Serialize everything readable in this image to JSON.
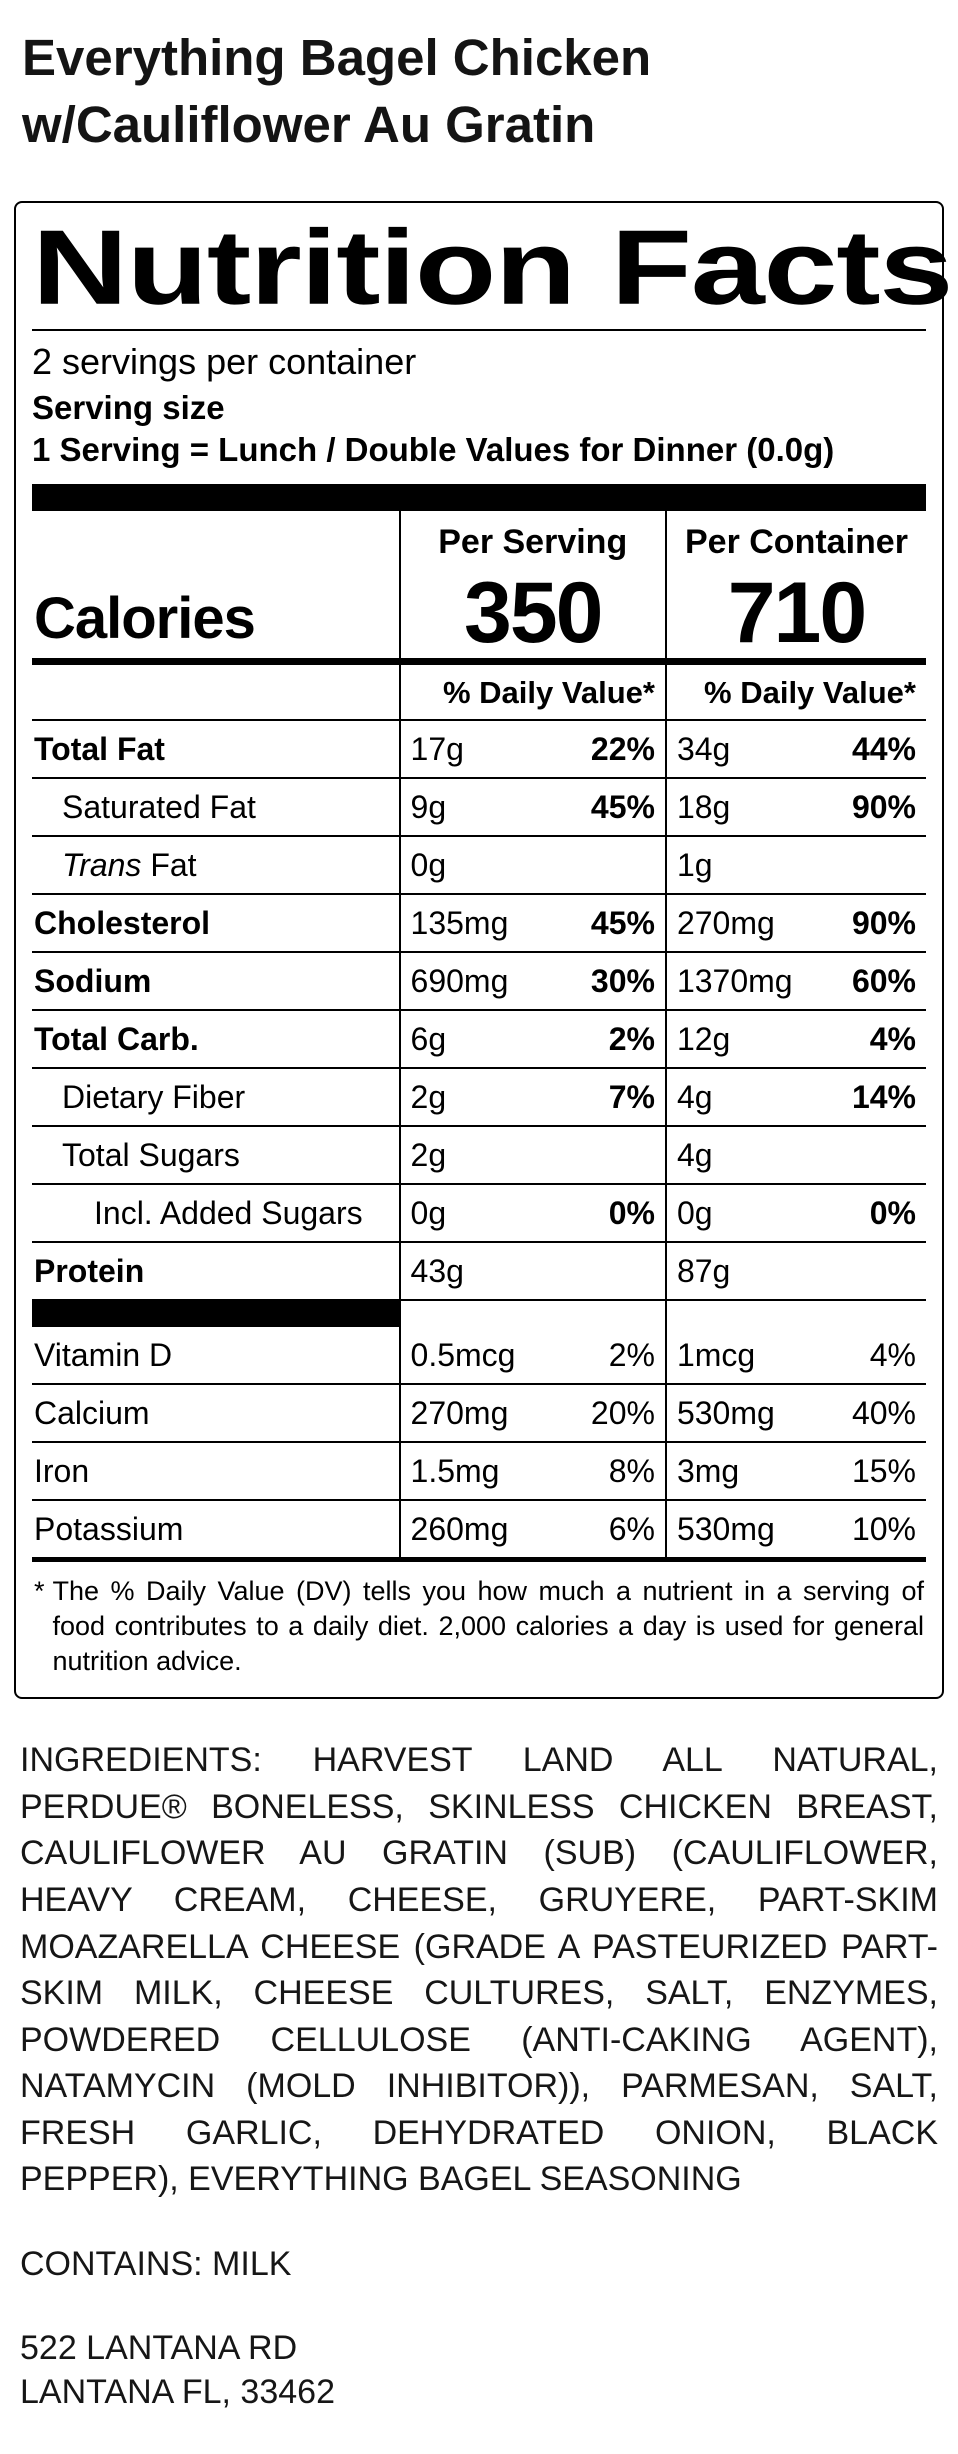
{
  "page": {
    "title_line1": "Everything Bagel Chicken",
    "title_line2": "w/Cauliflower Au Gratin"
  },
  "label": {
    "heading": "Nutrition Facts",
    "servings_per_container": "2 servings per container",
    "serving_size_label": "Serving size",
    "serving_size_value": "1 Serving = Lunch / Double Values for Dinner (0.0g)",
    "columns": {
      "per_serving": "Per Serving",
      "per_container": "Per Container"
    },
    "calories_label": "Calories",
    "calories_per_serving": "350",
    "calories_per_container": "710",
    "daily_value_header": "% Daily Value*",
    "rows": [
      {
        "key": "total-fat",
        "name": "Total Fat",
        "bold": true,
        "indent": 0,
        "per_serving": {
          "amount": "17g",
          "dv": "22%"
        },
        "per_container": {
          "amount": "34g",
          "dv": "44%"
        }
      },
      {
        "key": "saturated-fat",
        "name": "Saturated Fat",
        "bold": false,
        "indent": 1,
        "per_serving": {
          "amount": "9g",
          "dv": "45%"
        },
        "per_container": {
          "amount": "18g",
          "dv": "90%"
        }
      },
      {
        "key": "trans-fat",
        "name_parts": [
          {
            "text": "Trans",
            "italic": true
          },
          {
            "text": " Fat",
            "italic": false
          }
        ],
        "bold": false,
        "indent": 1,
        "per_serving": {
          "amount": "0g",
          "dv": ""
        },
        "per_container": {
          "amount": "1g",
          "dv": ""
        }
      },
      {
        "key": "cholesterol",
        "name": "Cholesterol",
        "bold": true,
        "indent": 0,
        "per_serving": {
          "amount": "135mg",
          "dv": "45%"
        },
        "per_container": {
          "amount": "270mg",
          "dv": "90%"
        }
      },
      {
        "key": "sodium",
        "name": "Sodium",
        "bold": true,
        "indent": 0,
        "per_serving": {
          "amount": "690mg",
          "dv": "30%"
        },
        "per_container": {
          "amount": "1370mg",
          "dv": "60%"
        }
      },
      {
        "key": "total-carb",
        "name": "Total Carb.",
        "bold": true,
        "indent": 0,
        "per_serving": {
          "amount": "6g",
          "dv": "2%"
        },
        "per_container": {
          "amount": "12g",
          "dv": "4%"
        }
      },
      {
        "key": "dietary-fiber",
        "name": "Dietary Fiber",
        "bold": false,
        "indent": 1,
        "per_serving": {
          "amount": "2g",
          "dv": "7%"
        },
        "per_container": {
          "amount": "4g",
          "dv": "14%"
        }
      },
      {
        "key": "total-sugars",
        "name": "Total Sugars",
        "bold": false,
        "indent": 1,
        "per_serving": {
          "amount": "2g",
          "dv": ""
        },
        "per_container": {
          "amount": "4g",
          "dv": ""
        }
      },
      {
        "key": "added-sugars",
        "name": "Incl. Added Sugars",
        "bold": false,
        "indent": 2,
        "per_serving": {
          "amount": "0g",
          "dv": "0%"
        },
        "per_container": {
          "amount": "0g",
          "dv": "0%"
        }
      },
      {
        "key": "protein",
        "name": "Protein",
        "bold": true,
        "indent": 0,
        "per_serving": {
          "amount": "43g",
          "dv": ""
        },
        "per_container": {
          "amount": "87g",
          "dv": ""
        }
      }
    ],
    "vitamins": [
      {
        "key": "vitamin-d",
        "name": "Vitamin D",
        "bold": false,
        "indent": 0,
        "per_serving": {
          "amount": "0.5mcg",
          "dv": "2%"
        },
        "per_container": {
          "amount": "1mcg",
          "dv": "4%"
        }
      },
      {
        "key": "calcium",
        "name": "Calcium",
        "bold": false,
        "indent": 0,
        "per_serving": {
          "amount": "270mg",
          "dv": "20%"
        },
        "per_container": {
          "amount": "530mg",
          "dv": "40%"
        }
      },
      {
        "key": "iron",
        "name": "Iron",
        "bold": false,
        "indent": 0,
        "per_serving": {
          "amount": "1.5mg",
          "dv": "8%"
        },
        "per_container": {
          "amount": "3mg",
          "dv": "15%"
        }
      },
      {
        "key": "potassium",
        "name": "Potassium",
        "bold": false,
        "indent": 0,
        "per_serving": {
          "amount": "260mg",
          "dv": "6%"
        },
        "per_container": {
          "amount": "530mg",
          "dv": "10%"
        }
      }
    ],
    "footnote_star": "*",
    "footnote": "The % Daily Value (DV) tells you how much a nutrient in a serving of food contributes to a daily diet. 2,000 calories a day is used for general nutrition advice."
  },
  "ingredients": "INGREDIENTS: HARVEST LAND ALL NATURAL, PERDUE® BONELESS, SKINLESS CHICKEN BREAST, CAULIFLOWER AU GRATIN (SUB) (CAULIFLOWER, HEAVY CREAM, CHEESE, GRUYERE, PART-SKIM MOAZARELLA CHEESE (GRADE A PASTEURIZED PART-SKIM MILK, CHEESE CULTURES, SALT, ENZYMES, POWDERED CELLULOSE (ANTI-CAKING AGENT), NATAMYCIN (MOLD INHIBITOR)), PARMESAN, SALT, FRESH GARLIC, DEHYDRATED ONION, BLACK PEPPER), EVERYTHING BAGEL SEASONING",
  "contains": "CONTAINS: MILK",
  "address_line1": "522 LANTANA RD",
  "address_line2": "LANTANA FL, 33462"
}
